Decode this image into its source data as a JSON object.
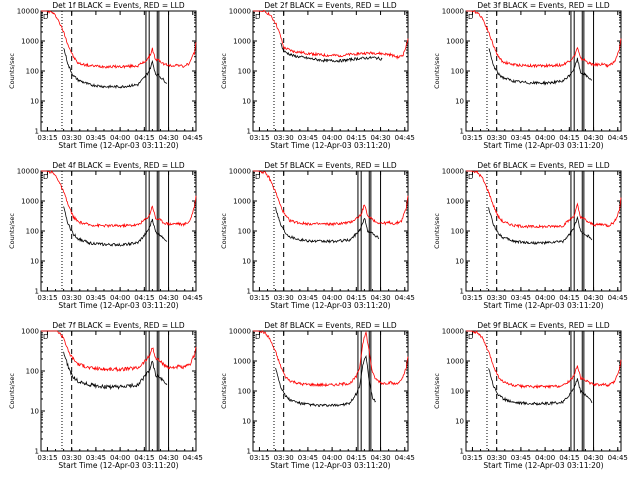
{
  "figure": {
    "xlabel": "Start Time (12-Apr-03 03:11:20)",
    "ylabel": "Counts/sec",
    "line_colors": {
      "events": "#000000",
      "lld": "#ff0000",
      "frame": "#000000"
    }
  },
  "chart_data": [
    {
      "type": "line",
      "title": "Det 1f  BLACK = Events, RED = LLD",
      "tag": "D",
      "xlim_minutes": [
        0,
        96
      ],
      "ylim": [
        1,
        10000
      ],
      "yscale": "log",
      "xticks": [
        "03:15",
        "03:30",
        "03:45",
        "04:00",
        "04:15",
        "04:30",
        "04:45"
      ],
      "yticks": [
        "1",
        "10",
        "100",
        "1000",
        "10000"
      ],
      "markers": {
        "dotted_minutes": 13,
        "dashed_minutes": 19,
        "solid_minutes": [
          65,
          67,
          72,
          73,
          79
        ]
      },
      "series": [
        {
          "key": "lld",
          "x": [
            0,
            3,
            7,
            10,
            14,
            17,
            20,
            23,
            30,
            40,
            50,
            60,
            64,
            67,
            69,
            71,
            73,
            76,
            80,
            85,
            88,
            92,
            95,
            96
          ],
          "y": [
            10000,
            10000,
            9000,
            6000,
            2000,
            700,
            300,
            180,
            150,
            140,
            140,
            150,
            200,
            280,
            550,
            230,
            230,
            170,
            150,
            160,
            140,
            180,
            400,
            900
          ]
        },
        {
          "key": "events",
          "x": [
            14,
            17,
            20,
            23,
            30,
            40,
            50,
            60,
            64,
            67,
            69,
            71,
            73,
            76,
            78
          ],
          "y": [
            600,
            150,
            70,
            50,
            35,
            30,
            30,
            35,
            60,
            100,
            200,
            80,
            70,
            50,
            40
          ]
        }
      ]
    },
    {
      "type": "line",
      "title": "Det 2f  BLACK = Events, RED = LLD",
      "tag": "D",
      "xlim_minutes": [
        0,
        96
      ],
      "ylim": [
        1,
        10000
      ],
      "yscale": "log",
      "xticks": [
        "03:15",
        "03:30",
        "03:45",
        "04:00",
        "04:15",
        "04:30",
        "04:45"
      ],
      "yticks": [
        "1",
        "10",
        "100",
        "1000",
        "10000"
      ],
      "markers": {
        "dotted_minutes": 13,
        "dashed_minutes": 19,
        "solid_minutes": []
      },
      "series": [
        {
          "key": "lld",
          "x": [
            0,
            3,
            7,
            10,
            14,
            17,
            19,
            25,
            35,
            45,
            55,
            65,
            75,
            85,
            90,
            93,
            95,
            96
          ],
          "y": [
            10000,
            10000,
            9500,
            8000,
            4000,
            1500,
            600,
            450,
            380,
            330,
            330,
            380,
            400,
            350,
            280,
            350,
            700,
            1200
          ]
        },
        {
          "key": "events",
          "x": [
            17,
            19,
            25,
            35,
            45,
            55,
            65,
            75,
            80
          ],
          "y": [
            900,
            450,
            320,
            260,
            220,
            220,
            260,
            280,
            250
          ]
        }
      ]
    },
    {
      "type": "line",
      "title": "Det 3f  BLACK = Events, RED = LLD",
      "tag": "D",
      "xlim_minutes": [
        0,
        96
      ],
      "ylim": [
        1,
        10000
      ],
      "yscale": "log",
      "xticks": [
        "03:15",
        "03:30",
        "03:45",
        "04:00",
        "04:15",
        "04:30",
        "04:45"
      ],
      "yticks": [
        "1",
        "10",
        "100",
        "1000",
        "10000"
      ],
      "markers": {
        "dotted_minutes": 13,
        "dashed_minutes": 19,
        "solid_minutes": [
          65,
          67,
          72,
          73,
          79
        ]
      },
      "series": [
        {
          "key": "lld",
          "x": [
            0,
            3,
            7,
            10,
            14,
            17,
            20,
            23,
            30,
            40,
            50,
            60,
            64,
            67,
            69,
            71,
            73,
            76,
            80,
            85,
            88,
            92,
            95,
            96
          ],
          "y": [
            10000,
            10000,
            9000,
            6000,
            2000,
            700,
            300,
            200,
            160,
            150,
            150,
            160,
            220,
            300,
            600,
            250,
            240,
            180,
            160,
            170,
            150,
            200,
            500,
            1200
          ]
        },
        {
          "key": "events",
          "x": [
            14,
            17,
            20,
            23,
            30,
            40,
            50,
            60,
            64,
            67,
            69,
            71,
            73,
            76,
            78
          ],
          "y": [
            600,
            150,
            80,
            60,
            45,
            40,
            40,
            45,
            70,
            120,
            250,
            90,
            80,
            60,
            50
          ]
        }
      ]
    },
    {
      "type": "line",
      "title": "Det 4f  BLACK = Events, RED = LLD",
      "tag": "D",
      "xlim_minutes": [
        0,
        96
      ],
      "ylim": [
        1,
        10000
      ],
      "yscale": "log",
      "xticks": [
        "03:15",
        "03:30",
        "03:45",
        "04:00",
        "04:15",
        "04:30",
        "04:45"
      ],
      "yticks": [
        "1",
        "10",
        "100",
        "1000",
        "10000"
      ],
      "markers": {
        "dotted_minutes": 13,
        "dashed_minutes": 19,
        "solid_minutes": [
          65,
          67,
          72,
          73,
          79
        ]
      },
      "series": [
        {
          "key": "lld",
          "x": [
            0,
            3,
            7,
            10,
            14,
            17,
            20,
            23,
            30,
            40,
            50,
            60,
            64,
            67,
            69,
            71,
            73,
            76,
            80,
            85,
            88,
            92,
            95,
            96
          ],
          "y": [
            10000,
            10000,
            9000,
            6000,
            2000,
            700,
            300,
            200,
            160,
            150,
            150,
            160,
            230,
            320,
            700,
            260,
            250,
            190,
            170,
            180,
            160,
            210,
            600,
            1500
          ]
        },
        {
          "key": "events",
          "x": [
            14,
            17,
            20,
            23,
            30,
            40,
            50,
            60,
            64,
            67,
            69,
            71,
            73,
            76,
            78
          ],
          "y": [
            600,
            160,
            80,
            55,
            40,
            35,
            35,
            40,
            70,
            120,
            250,
            90,
            80,
            60,
            45
          ]
        }
      ]
    },
    {
      "type": "line",
      "title": "Det 5f  BLACK = Events, RED = LLD",
      "tag": "D",
      "xlim_minutes": [
        0,
        96
      ],
      "ylim": [
        1,
        10000
      ],
      "yscale": "log",
      "xticks": [
        "03:15",
        "03:30",
        "03:45",
        "04:00",
        "04:15",
        "04:30",
        "04:45"
      ],
      "yticks": [
        "1",
        "10",
        "100",
        "1000",
        "10000"
      ],
      "markers": {
        "dotted_minutes": 13,
        "dashed_minutes": 19,
        "solid_minutes": [
          65,
          67,
          72,
          73,
          79
        ]
      },
      "series": [
        {
          "key": "lld",
          "x": [
            0,
            3,
            7,
            10,
            14,
            17,
            20,
            23,
            30,
            40,
            50,
            60,
            64,
            67,
            69,
            71,
            73,
            76,
            80,
            85,
            88,
            92,
            95,
            96
          ],
          "y": [
            10000,
            10000,
            9000,
            6000,
            2000,
            700,
            320,
            220,
            180,
            170,
            170,
            190,
            260,
            350,
            800,
            300,
            280,
            200,
            180,
            190,
            170,
            220,
            600,
            1500
          ]
        },
        {
          "key": "events",
          "x": [
            14,
            17,
            20,
            23,
            30,
            40,
            50,
            60,
            64,
            67,
            69,
            71,
            73,
            76,
            78
          ],
          "y": [
            600,
            170,
            90,
            65,
            50,
            45,
            45,
            50,
            80,
            130,
            280,
            100,
            90,
            70,
            55
          ]
        }
      ]
    },
    {
      "type": "line",
      "title": "Det 6f  BLACK = Events, RED = LLD",
      "tag": "D",
      "xlim_minutes": [
        0,
        96
      ],
      "ylim": [
        1,
        10000
      ],
      "yscale": "log",
      "xticks": [
        "03:15",
        "03:30",
        "03:45",
        "04:00",
        "04:15",
        "04:30",
        "04:45"
      ],
      "yticks": [
        "1",
        "10",
        "100",
        "1000",
        "10000"
      ],
      "markers": {
        "dotted_minutes": 13,
        "dashed_minutes": 19,
        "solid_minutes": [
          65,
          67,
          72,
          73,
          79
        ]
      },
      "series": [
        {
          "key": "lld",
          "x": [
            0,
            3,
            7,
            10,
            14,
            17,
            20,
            23,
            30,
            40,
            50,
            60,
            64,
            67,
            69,
            71,
            73,
            76,
            80,
            85,
            88,
            92,
            95,
            96
          ],
          "y": [
            10000,
            10000,
            9000,
            6000,
            2000,
            700,
            300,
            200,
            150,
            140,
            140,
            150,
            230,
            330,
            750,
            270,
            260,
            190,
            160,
            170,
            150,
            200,
            500,
            1300
          ]
        },
        {
          "key": "events",
          "x": [
            14,
            17,
            20,
            23,
            30,
            40,
            50,
            60,
            64,
            67,
            69,
            71,
            73,
            76,
            78
          ],
          "y": [
            600,
            160,
            85,
            60,
            45,
            40,
            40,
            45,
            75,
            130,
            270,
            95,
            85,
            65,
            50
          ]
        }
      ]
    },
    {
      "type": "line",
      "title": "Det 7f  BLACK = Events, RED = LLD",
      "tag": "D",
      "xlim_minutes": [
        0,
        96
      ],
      "ylim": [
        1,
        1000
      ],
      "yscale": "log",
      "xticks": [
        "03:15",
        "03:30",
        "03:45",
        "04:00",
        "04:15",
        "04:30",
        "04:45"
      ],
      "yticks": [
        "1",
        "10",
        "100",
        "1000"
      ],
      "markers": {
        "dotted_minutes": 13,
        "dashed_minutes": 19,
        "solid_minutes": [
          65,
          67,
          72,
          73,
          79
        ]
      },
      "series": [
        {
          "key": "lld",
          "x": [
            0,
            3,
            7,
            10,
            14,
            17,
            20,
            23,
            30,
            40,
            50,
            60,
            64,
            67,
            69,
            71,
            73,
            76,
            80,
            85,
            88,
            92,
            95,
            96
          ],
          "y": [
            1000,
            1000,
            1000,
            1000,
            700,
            300,
            200,
            150,
            120,
            110,
            110,
            120,
            170,
            230,
            400,
            200,
            190,
            140,
            120,
            130,
            120,
            140,
            250,
            400
          ]
        },
        {
          "key": "events",
          "x": [
            14,
            17,
            20,
            23,
            30,
            40,
            50,
            60,
            64,
            67,
            69,
            71,
            73,
            76,
            78
          ],
          "y": [
            300,
            120,
            70,
            55,
            45,
            40,
            40,
            45,
            70,
            100,
            180,
            80,
            70,
            55,
            45
          ]
        }
      ]
    },
    {
      "type": "line",
      "title": "Det 8f  BLACK = Events, RED = LLD",
      "tag": "D",
      "xlim_minutes": [
        0,
        96
      ],
      "ylim": [
        1,
        10000
      ],
      "yscale": "log",
      "xticks": [
        "03:15",
        "03:30",
        "03:45",
        "04:00",
        "04:15",
        "04:30",
        "04:45"
      ],
      "yticks": [
        "1",
        "10",
        "100",
        "1000",
        "10000"
      ],
      "markers": {
        "dotted_minutes": 13,
        "dashed_minutes": 19,
        "solid_minutes": [
          65,
          67,
          72,
          73,
          79
        ]
      },
      "series": [
        {
          "key": "lld",
          "x": [
            0,
            3,
            7,
            10,
            14,
            17,
            20,
            23,
            30,
            40,
            50,
            60,
            64,
            66,
            68,
            70,
            72,
            74,
            76,
            80,
            85,
            88,
            92,
            95,
            96
          ],
          "y": [
            10000,
            10000,
            9000,
            6000,
            2000,
            700,
            300,
            220,
            170,
            160,
            160,
            180,
            300,
            600,
            4000,
            9000,
            2000,
            400,
            250,
            180,
            190,
            170,
            220,
            600,
            1400
          ]
        },
        {
          "key": "events",
          "x": [
            14,
            17,
            20,
            23,
            30,
            40,
            50,
            60,
            64,
            66,
            68,
            70,
            72,
            74,
            76
          ],
          "y": [
            600,
            150,
            70,
            50,
            38,
            33,
            33,
            38,
            80,
            150,
            700,
            1500,
            200,
            60,
            45
          ]
        }
      ]
    },
    {
      "type": "line",
      "title": "Det 9f  BLACK = Events, RED = LLD",
      "tag": "D",
      "xlim_minutes": [
        0,
        96
      ],
      "ylim": [
        1,
        10000
      ],
      "yscale": "log",
      "xticks": [
        "03:15",
        "03:30",
        "03:45",
        "04:00",
        "04:15",
        "04:30",
        "04:45"
      ],
      "yticks": [
        "1",
        "10",
        "100",
        "1000",
        "10000"
      ],
      "markers": {
        "dotted_minutes": 13,
        "dashed_minutes": 19,
        "solid_minutes": [
          65,
          67,
          72,
          73,
          79
        ]
      },
      "series": [
        {
          "key": "lld",
          "x": [
            0,
            3,
            7,
            10,
            14,
            17,
            20,
            23,
            30,
            40,
            50,
            60,
            64,
            67,
            69,
            71,
            73,
            76,
            80,
            85,
            88,
            92,
            95,
            96
          ],
          "y": [
            10000,
            10000,
            9000,
            6000,
            2000,
            700,
            300,
            200,
            150,
            140,
            140,
            150,
            220,
            320,
            750,
            270,
            260,
            190,
            160,
            170,
            150,
            200,
            500,
            1100
          ]
        },
        {
          "key": "events",
          "x": [
            14,
            17,
            20,
            23,
            30,
            40,
            50,
            60,
            64,
            67,
            69,
            71,
            73,
            76,
            78
          ],
          "y": [
            600,
            150,
            75,
            55,
            42,
            38,
            38,
            42,
            75,
            130,
            260,
            95,
            80,
            60,
            40
          ]
        }
      ]
    }
  ]
}
